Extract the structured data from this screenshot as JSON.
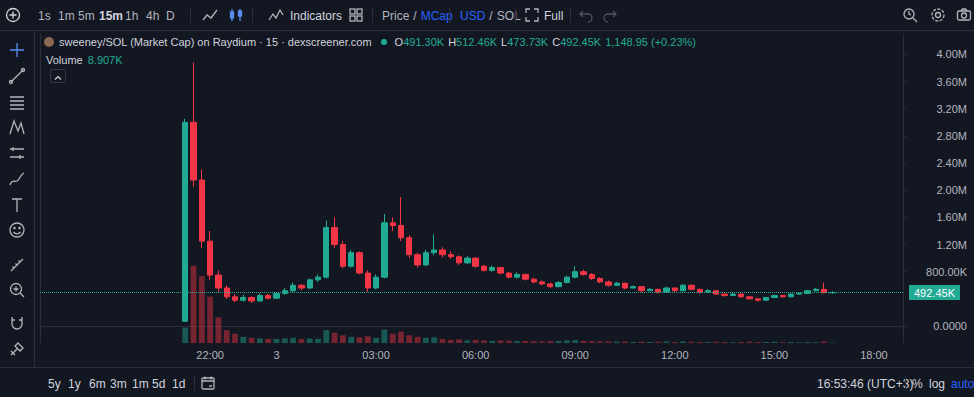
{
  "toolbar": {
    "intervals": [
      "1s",
      "1m",
      "5m",
      "15m",
      "1h",
      "4h",
      "D"
    ],
    "active_interval": "15m",
    "indicators": "Indicators",
    "price_mcap": {
      "parts": [
        "Price",
        "/",
        "MCap"
      ],
      "active": "MCap"
    },
    "currency": {
      "parts": [
        "USD",
        "/",
        "SOL"
      ],
      "active": "USD"
    },
    "full": "Full"
  },
  "header": {
    "title": "sweeney/SOL (Market Cap) on Raydium · 15 · dexscreener.com",
    "ohlc": [
      {
        "key": "O",
        "value": "491.30K"
      },
      {
        "key": "H",
        "value": "512.46K"
      },
      {
        "key": "L",
        "value": "473.73K"
      },
      {
        "key": "C",
        "value": "492.45K"
      }
    ],
    "change": "1,148.95 (+0.23%)",
    "volume_label": "Volume",
    "volume_value": "8.907K"
  },
  "footer": {
    "ranges": [
      "5y",
      "1y",
      "6m",
      "3m",
      "1m",
      "5d",
      "1d"
    ],
    "clock": "16:53:46 (UTC+3)",
    "scale": {
      "items": [
        "%",
        "log",
        "auto"
      ],
      "active": "auto"
    }
  },
  "chart_data": {
    "type": "candlestick",
    "categories": [
      null,
      null,
      null,
      null,
      null,
      null,
      null,
      null,
      null,
      null,
      null,
      null,
      null,
      null,
      null,
      null,
      null,
      null,
      null,
      null,
      "22:00",
      null,
      null,
      null,
      null,
      null,
      null,
      null,
      "3",
      null,
      null,
      null,
      null,
      null,
      null,
      null,
      null,
      null,
      null,
      null,
      "03:00",
      null,
      null,
      null,
      null,
      null,
      null,
      null,
      null,
      null,
      null,
      null,
      "06:00",
      null,
      null,
      null,
      null,
      null,
      null,
      null,
      null,
      null,
      null,
      null,
      "09:00",
      null,
      null,
      null,
      null,
      null,
      null,
      null,
      null,
      null,
      null,
      null,
      "12:00",
      null,
      null,
      null,
      null,
      null,
      null,
      null,
      null,
      null,
      null,
      null,
      "15:00",
      null,
      null,
      null,
      null,
      null,
      null,
      null,
      null,
      null,
      null,
      null,
      "18:00",
      null,
      null,
      null
    ],
    "series": [
      {
        "type": "candlestick",
        "open": [
          null,
          null,
          null,
          null,
          null,
          null,
          null,
          null,
          null,
          null,
          null,
          null,
          null,
          null,
          null,
          null,
          null,
          70000,
          3000000,
          2150000,
          1250000,
          750000,
          560000,
          430000,
          380000,
          420000,
          370000,
          450000,
          410000,
          480000,
          520000,
          600000,
          560000,
          680000,
          720000,
          1450000,
          1200000,
          880000,
          1080000,
          780000,
          560000,
          720000,
          1520000,
          1480000,
          1300000,
          1050000,
          900000,
          1080000,
          1120000,
          1050000,
          1020000,
          930000,
          1000000,
          880000,
          820000,
          860000,
          780000,
          720000,
          760000,
          690000,
          650000,
          620000,
          580000,
          640000,
          720000,
          800000,
          760000,
          700000,
          650000,
          600000,
          630000,
          560000,
          580000,
          520000,
          540000,
          500000,
          560000,
          520000,
          600000,
          540000,
          500000,
          520000,
          470000,
          450000,
          470000,
          430000,
          400000,
          380000,
          420000,
          450000,
          430000,
          470000,
          480000,
          520000,
          540000,
          491300,
          null,
          null,
          null,
          null,
          null,
          null,
          null,
          null
        ],
        "high": [
          null,
          null,
          null,
          null,
          null,
          null,
          null,
          null,
          null,
          null,
          null,
          null,
          null,
          null,
          null,
          null,
          null,
          3050000,
          3880000,
          2300000,
          1400000,
          820000,
          600000,
          470000,
          460000,
          440000,
          480000,
          470000,
          500000,
          560000,
          640000,
          620000,
          700000,
          760000,
          1550000,
          1600000,
          1250000,
          1120000,
          1100000,
          820000,
          760000,
          1650000,
          1600000,
          1900000,
          1340000,
          1080000,
          1120000,
          1350000,
          1160000,
          1100000,
          1040000,
          1030000,
          1010000,
          900000,
          890000,
          870000,
          800000,
          790000,
          770000,
          710000,
          670000,
          640000,
          660000,
          740000,
          880000,
          830000,
          780000,
          720000,
          670000,
          650000,
          640000,
          600000,
          590000,
          560000,
          550000,
          580000,
          570000,
          620000,
          610000,
          550000,
          540000,
          530000,
          480000,
          490000,
          480000,
          440000,
          410000,
          430000,
          460000,
          460000,
          480000,
          490000,
          530000,
          560000,
          640000,
          512460,
          null,
          null,
          null,
          null,
          null,
          null,
          null,
          null
        ],
        "low": [
          null,
          null,
          null,
          null,
          null,
          null,
          null,
          null,
          null,
          null,
          null,
          null,
          null,
          null,
          null,
          null,
          null,
          60000,
          2050000,
          1150000,
          680000,
          500000,
          400000,
          350000,
          360000,
          340000,
          360000,
          390000,
          400000,
          460000,
          500000,
          530000,
          540000,
          650000,
          700000,
          1150000,
          850000,
          860000,
          760000,
          500000,
          540000,
          700000,
          1400000,
          1250000,
          1000000,
          860000,
          880000,
          1040000,
          1010000,
          990000,
          900000,
          910000,
          860000,
          800000,
          800000,
          760000,
          700000,
          700000,
          670000,
          630000,
          600000,
          560000,
          570000,
          630000,
          700000,
          740000,
          680000,
          630000,
          580000,
          590000,
          540000,
          550000,
          500000,
          510000,
          480000,
          490000,
          500000,
          510000,
          530000,
          480000,
          490000,
          460000,
          430000,
          440000,
          420000,
          390000,
          360000,
          370000,
          410000,
          420000,
          420000,
          460000,
          470000,
          510000,
          480000,
          473730,
          null,
          null,
          null,
          null,
          null,
          null,
          null,
          null
        ],
        "close": [
          null,
          null,
          null,
          null,
          null,
          null,
          null,
          null,
          null,
          null,
          null,
          null,
          null,
          null,
          null,
          null,
          null,
          3000000,
          2150000,
          1250000,
          750000,
          560000,
          430000,
          380000,
          420000,
          370000,
          450000,
          410000,
          480000,
          520000,
          600000,
          560000,
          680000,
          720000,
          1450000,
          1200000,
          880000,
          1080000,
          780000,
          560000,
          720000,
          1520000,
          1480000,
          1300000,
          1050000,
          900000,
          1080000,
          1120000,
          1050000,
          1020000,
          930000,
          1000000,
          880000,
          820000,
          860000,
          780000,
          720000,
          760000,
          690000,
          650000,
          620000,
          580000,
          640000,
          720000,
          800000,
          760000,
          700000,
          650000,
          600000,
          630000,
          560000,
          580000,
          520000,
          540000,
          500000,
          560000,
          520000,
          600000,
          540000,
          500000,
          520000,
          470000,
          450000,
          470000,
          430000,
          400000,
          380000,
          420000,
          450000,
          430000,
          470000,
          480000,
          520000,
          540000,
          491300,
          492450,
          null,
          null,
          null,
          null,
          null,
          null,
          null,
          null
        ]
      },
      {
        "name": "Volume",
        "type": "bar",
        "axis": "y2",
        "values": [
          null,
          null,
          null,
          null,
          null,
          null,
          null,
          null,
          null,
          null,
          null,
          null,
          null,
          null,
          null,
          null,
          null,
          300000,
          1500000,
          1300000,
          900000,
          500000,
          250000,
          180000,
          120000,
          100000,
          90000,
          80000,
          80000,
          90000,
          100000,
          80000,
          90000,
          80000,
          250000,
          200000,
          150000,
          120000,
          110000,
          130000,
          100000,
          260000,
          180000,
          220000,
          150000,
          120000,
          100000,
          110000,
          80000,
          60000,
          70000,
          50000,
          60000,
          50000,
          40000,
          50000,
          45000,
          35000,
          40000,
          35000,
          30000,
          35000,
          40000,
          50000,
          60000,
          40000,
          35000,
          30000,
          30000,
          25000,
          30000,
          20000,
          25000,
          20000,
          25000,
          30000,
          20000,
          30000,
          25000,
          20000,
          20000,
          25000,
          20000,
          15000,
          20000,
          25000,
          20000,
          20000,
          25000,
          15000,
          20000,
          15000,
          20000,
          15000,
          30000,
          8907,
          null,
          null,
          null,
          null,
          null,
          null,
          null,
          null
        ]
      }
    ],
    "ylim": [
      -250000,
      4300000
    ],
    "yticks": [
      {
        "value": 0,
        "label": "0.0000"
      },
      {
        "value": 800000,
        "label": "800.00K"
      },
      {
        "value": 1200000,
        "label": "1.20M"
      },
      {
        "value": 1600000,
        "label": "1.60M"
      },
      {
        "value": 2000000,
        "label": "2.00M"
      },
      {
        "value": 2400000,
        "label": "2.40M"
      },
      {
        "value": 2800000,
        "label": "2.80M"
      },
      {
        "value": 3200000,
        "label": "3.20M"
      },
      {
        "value": 3600000,
        "label": "3.60M"
      },
      {
        "value": 4000000,
        "label": "4.00M"
      }
    ],
    "y2lim": [
      0,
      6000000
    ],
    "price_line": {
      "value": 492450,
      "label": "492.45K"
    },
    "grid": false
  }
}
